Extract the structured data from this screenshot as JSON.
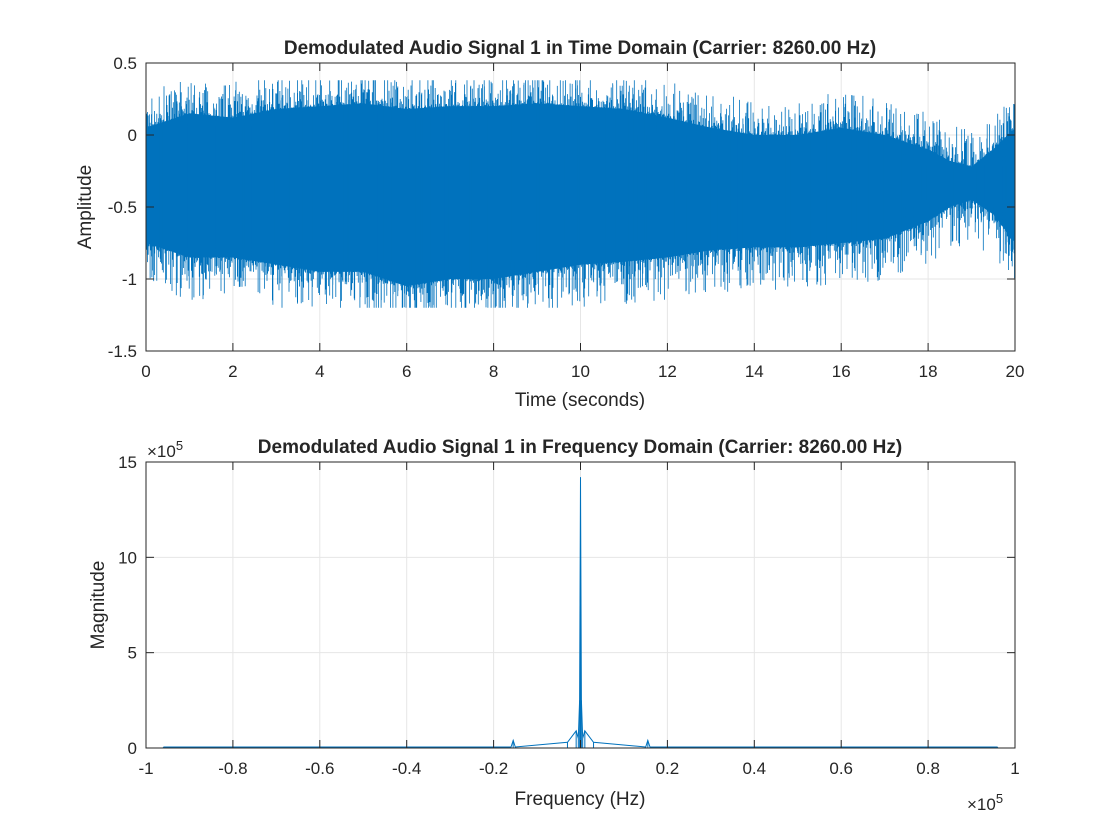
{
  "chart_data": [
    {
      "type": "line",
      "title": "Demodulated Audio Signal 1 in Time Domain (Carrier: 8260.00 Hz)",
      "xlabel": "Time (seconds)",
      "ylabel": "Amplitude",
      "xlim": [
        0,
        20
      ],
      "ylim": [
        -1.5,
        0.5
      ],
      "xticks": [
        0,
        2,
        4,
        6,
        8,
        10,
        12,
        14,
        16,
        18,
        20
      ],
      "xtick_labels": [
        "0",
        "2",
        "4",
        "6",
        "8",
        "10",
        "12",
        "14",
        "16",
        "18",
        "20"
      ],
      "yticks": [
        -1.5,
        -1,
        -0.5,
        0,
        0.5
      ],
      "ytick_labels": [
        "-1.5",
        "-1",
        "-0.5",
        "0",
        "0.5"
      ],
      "grid": true,
      "color": "#0072BD",
      "series": [
        {
          "envelope": {
            "t": [
              0,
              1,
              2,
              3,
              4,
              5,
              6,
              7,
              8,
              9,
              10,
              11,
              12,
              13,
              14,
              15,
              16,
              17,
              18,
              18.5,
              19,
              19.5,
              20
            ],
            "upper": [
              0.05,
              0.15,
              0.12,
              0.18,
              0.2,
              0.22,
              0.18,
              0.2,
              0.2,
              0.22,
              0.2,
              0.18,
              0.12,
              0.05,
              0.0,
              0.0,
              0.05,
              0.0,
              -0.1,
              -0.18,
              -0.22,
              -0.1,
              0.05
            ],
            "lower": [
              -0.75,
              -0.85,
              -0.85,
              -0.9,
              -0.95,
              -0.95,
              -1.05,
              -1.0,
              -1.0,
              -0.95,
              -0.9,
              -0.88,
              -0.85,
              -0.8,
              -0.78,
              -0.78,
              -0.75,
              -0.72,
              -0.6,
              -0.5,
              -0.45,
              -0.55,
              -0.75
            ],
            "peak_max": 0.38,
            "peak_min": -1.2
          }
        }
      ]
    },
    {
      "type": "line",
      "title": "Demodulated Audio Signal 1 in Frequency Domain (Carrier: 8260.00 Hz)",
      "xlabel": "Frequency (Hz)",
      "ylabel": "Magnitude",
      "xlim": [
        -1,
        1
      ],
      "ylim": [
        0,
        15
      ],
      "x_exponent_label": "×10",
      "x_exponent": "5",
      "y_exponent_label": "×10",
      "y_exponent": "5",
      "xticks": [
        -1,
        -0.8,
        -0.6,
        -0.4,
        -0.2,
        0,
        0.2,
        0.4,
        0.6,
        0.8,
        1
      ],
      "xtick_labels": [
        "-1",
        "-0.8",
        "-0.6",
        "-0.4",
        "-0.2",
        "0",
        "0.2",
        "0.4",
        "0.6",
        "0.8",
        "1"
      ],
      "yticks": [
        0,
        5,
        10,
        15
      ],
      "ytick_labels": [
        "0",
        "5",
        "10",
        "15"
      ],
      "grid": true,
      "color": "#0072BD",
      "series": [
        {
          "x": [
            -0.96,
            -0.5,
            -0.16,
            -0.155,
            -0.15,
            -0.03,
            -0.01,
            -0.005,
            -0.002,
            0,
            0.002,
            0.005,
            0.01,
            0.03,
            0.15,
            0.155,
            0.16,
            0.5,
            0.96
          ],
          "y": [
            0.05,
            0.05,
            0.05,
            0.4,
            0.05,
            0.3,
            0.9,
            0.5,
            2.5,
            14.2,
            2.5,
            0.5,
            0.9,
            0.3,
            0.05,
            0.4,
            0.05,
            0.05,
            0.05
          ]
        }
      ]
    }
  ]
}
